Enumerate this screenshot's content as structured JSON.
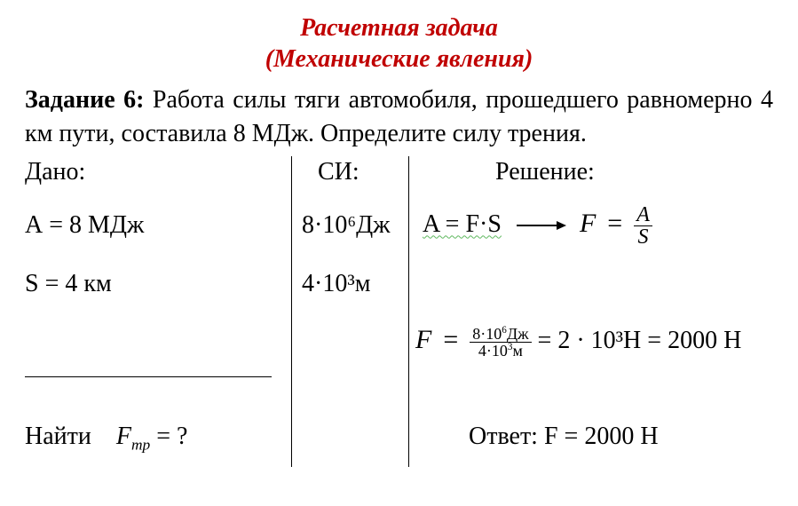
{
  "heading": {
    "line1": "Расчетная задача",
    "line2": "(Механические явления)"
  },
  "task": {
    "label": "Задание 6:",
    "text": "Работа силы тяги автомобиля, прошедшего равномерно 4 км пути, составила 8 МДж. Определите силу трения."
  },
  "columns": {
    "given": "Дано:",
    "si": "СИ:",
    "solution": "Решение:"
  },
  "rows": {
    "A_given": "А = 8 МДж",
    "A_si": "8·10⁶Дж",
    "S_given": "S = 4 км",
    "S_si": "4·10³м"
  },
  "formula1": {
    "lhs_html": "A = F·S",
    "rhs_F": "F",
    "eq": "=",
    "frac_num": "A",
    "frac_den": "S"
  },
  "formula2": {
    "F": "F",
    "eq": "=",
    "num_html": "8·10<sup class='sup'>6</sup>Дж",
    "den_html": "4·10<sup class='sup'>3</sup>м",
    "mid": " = 2 · 10³Н = 2000 Н"
  },
  "find": {
    "label": "Найти",
    "sym": "F",
    "sub": "тр",
    "tail": " = ?"
  },
  "answer": {
    "label": "Ответ: ",
    "value": "F = 2000 Н"
  },
  "colors": {
    "title": "#c00000",
    "text": "#000000",
    "background": "#ffffff",
    "wavy": "#5fb85f"
  },
  "fonts": {
    "title_pt": 28,
    "body_pt": 28,
    "family": "Times New Roman"
  }
}
